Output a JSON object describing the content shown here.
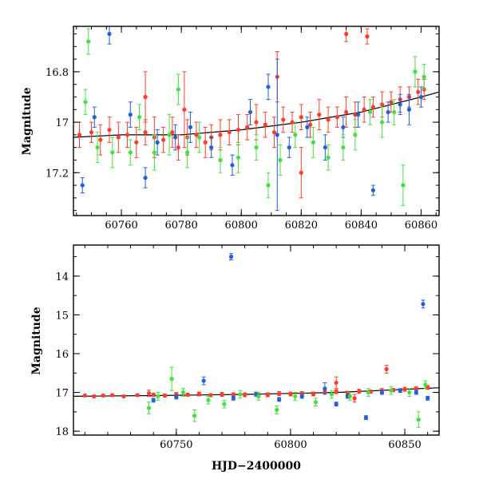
{
  "chart_data": [
    {
      "type": "scatter",
      "panel": "top",
      "title": "",
      "xlabel": "",
      "ylabel": "Magnitude",
      "xlim": [
        60744,
        60866
      ],
      "ylim": [
        17.37,
        16.62
      ],
      "y_inverted": true,
      "x_ticks": [
        60760,
        60780,
        60800,
        60820,
        60840,
        60860
      ],
      "y_ticks": [
        16.8,
        17,
        17.2
      ],
      "x_tick_labels": [
        "60760",
        "60780",
        "60800",
        "60820",
        "60840",
        "60860"
      ],
      "y_tick_labels": [
        "16.8",
        "17",
        "17.2"
      ],
      "series": [
        {
          "color": "#ff3b28",
          "points": [
            [
              60746,
              17.05,
              0.05
            ],
            [
              60750,
              17.04,
              0.04
            ],
            [
              60753,
              17.07,
              0.06
            ],
            [
              60756,
              17.03,
              0.05
            ],
            [
              60759,
              17.06,
              0.06
            ],
            [
              60762,
              17.05,
              0.05
            ],
            [
              60765,
              17.08,
              0.06
            ],
            [
              60768,
              17.04,
              0.05
            ],
            [
              60771,
              17.06,
              0.08
            ],
            [
              60774,
              17.07,
              0.05
            ],
            [
              60777,
              17.04,
              0.06
            ],
            [
              60779,
              17.1,
              0.05
            ],
            [
              60782,
              17.06,
              0.07
            ],
            [
              60785,
              17.05,
              0.05
            ],
            [
              60788,
              17.08,
              0.06
            ],
            [
              60790,
              17.06,
              0.05
            ],
            [
              60793,
              17.05,
              0.06
            ],
            [
              60796,
              17.04,
              0.05
            ],
            [
              60799,
              17.03,
              0.06
            ],
            [
              60802,
              17.02,
              0.05
            ],
            [
              60805,
              17.0,
              0.07
            ],
            [
              60808,
              17.01,
              0.05
            ],
            [
              60811,
              17.04,
              0.06
            ],
            [
              60814,
              16.99,
              0.05
            ],
            [
              60817,
              17.0,
              0.04
            ],
            [
              60820,
              16.98,
              0.05
            ],
            [
              60823,
              17.01,
              0.05
            ],
            [
              60826,
              16.97,
              0.06
            ],
            [
              60829,
              16.99,
              0.05
            ],
            [
              60832,
              16.98,
              0.04
            ],
            [
              60835,
              16.96,
              0.06
            ],
            [
              60838,
              16.97,
              0.05
            ],
            [
              60841,
              16.95,
              0.05
            ],
            [
              60844,
              16.94,
              0.04
            ],
            [
              60847,
              16.93,
              0.05
            ],
            [
              60850,
              16.92,
              0.04
            ],
            [
              60853,
              16.91,
              0.05
            ],
            [
              60856,
              16.9,
              0.04
            ],
            [
              60859,
              16.88,
              0.05
            ],
            [
              60861,
              16.87,
              0.04
            ],
            [
              60812,
              16.82,
              0.1
            ],
            [
              60835,
              16.65,
              0.03
            ],
            [
              60842,
              16.66,
              0.03
            ],
            [
              60820,
              17.2,
              0.1
            ],
            [
              60781,
              16.95,
              0.15
            ],
            [
              60768,
              16.9,
              0.1
            ]
          ]
        },
        {
          "color": "#1f5fe0",
          "points": [
            [
              60747,
              17.25,
              0.03
            ],
            [
              60751,
              16.98,
              0.04
            ],
            [
              60756,
              16.65,
              0.04
            ],
            [
              60763,
              16.97,
              0.05
            ],
            [
              60768,
              17.22,
              0.04
            ],
            [
              60772,
              17.08,
              0.05
            ],
            [
              60778,
              17.06,
              0.05
            ],
            [
              60783,
              17.02,
              0.06
            ],
            [
              60790,
              17.1,
              0.04
            ],
            [
              60797,
              17.17,
              0.04
            ],
            [
              60803,
              16.96,
              0.05
            ],
            [
              60809,
              16.86,
              0.05
            ],
            [
              60812,
              17.05,
              0.3
            ],
            [
              60816,
              17.1,
              0.04
            ],
            [
              60822,
              17.02,
              0.04
            ],
            [
              60828,
              17.1,
              0.05
            ],
            [
              60834,
              17.02,
              0.04
            ],
            [
              60839,
              16.97,
              0.05
            ],
            [
              60844,
              17.27,
              0.02
            ],
            [
              60849,
              16.96,
              0.04
            ],
            [
              60853,
              16.93,
              0.04
            ],
            [
              60856,
              16.95,
              0.06
            ],
            [
              60860,
              16.9,
              0.04
            ]
          ]
        },
        {
          "color": "#44e040",
          "points": [
            [
              60748,
              16.92,
              0.05
            ],
            [
              60749,
              16.68,
              0.05
            ],
            [
              60752,
              17.1,
              0.06
            ],
            [
              60757,
              17.12,
              0.06
            ],
            [
              60763,
              17.12,
              0.05
            ],
            [
              60766,
              16.98,
              0.05
            ],
            [
              60771,
              17.12,
              0.07
            ],
            [
              60776,
              17.05,
              0.08
            ],
            [
              60779,
              16.87,
              0.06
            ],
            [
              60782,
              17.12,
              0.06
            ],
            [
              60786,
              17.06,
              0.06
            ],
            [
              60793,
              17.15,
              0.05
            ],
            [
              60799,
              17.14,
              0.06
            ],
            [
              60805,
              17.1,
              0.05
            ],
            [
              60809,
              17.25,
              0.05
            ],
            [
              60813,
              17.15,
              0.06
            ],
            [
              60818,
              17.05,
              0.05
            ],
            [
              60824,
              17.08,
              0.06
            ],
            [
              60829,
              17.14,
              0.05
            ],
            [
              60834,
              17.1,
              0.05
            ],
            [
              60838,
              17.05,
              0.06
            ],
            [
              60843,
              16.96,
              0.05
            ],
            [
              60847,
              17.0,
              0.06
            ],
            [
              60851,
              16.96,
              0.05
            ],
            [
              60854,
              17.25,
              0.08
            ],
            [
              60858,
              16.8,
              0.06
            ],
            [
              60861,
              16.82,
              0.05
            ]
          ]
        }
      ],
      "model_curve": {
        "color": "#000000",
        "points": [
          [
            60744,
            17.06
          ],
          [
            60760,
            17.05
          ],
          [
            60780,
            17.05
          ],
          [
            60800,
            17.03
          ],
          [
            60820,
            17.0
          ],
          [
            60840,
            16.96
          ],
          [
            60860,
            16.9
          ],
          [
            60866,
            16.88
          ]
        ]
      }
    },
    {
      "type": "scatter",
      "panel": "bottom",
      "title": "",
      "xlabel": "HJD−2400000",
      "ylabel": "Magnitude",
      "xlim": [
        60705,
        60865
      ],
      "ylim": [
        18.1,
        13.2
      ],
      "y_inverted": true,
      "x_ticks": [
        60750,
        60800,
        60850
      ],
      "y_ticks": [
        14,
        15,
        16,
        17,
        18
      ],
      "x_tick_labels": [
        "60750",
        "60800",
        "60850"
      ],
      "y_tick_labels": [
        "14",
        "15",
        "16",
        "17",
        "18"
      ],
      "series": [
        {
          "color": "#ff3b28",
          "points": [
            [
              60710,
              17.08,
              0.03
            ],
            [
              60714,
              17.1,
              0.03
            ],
            [
              60718,
              17.08,
              0.03
            ],
            [
              60722,
              17.07,
              0.03
            ],
            [
              60727,
              17.1,
              0.03
            ],
            [
              60733,
              17.07,
              0.03
            ],
            [
              60740,
              17.06,
              0.04
            ],
            [
              60745,
              17.08,
              0.04
            ],
            [
              60750,
              17.05,
              0.05
            ],
            [
              60755,
              17.06,
              0.04
            ],
            [
              60760,
              17.04,
              0.05
            ],
            [
              60765,
              17.07,
              0.04
            ],
            [
              60770,
              17.05,
              0.05
            ],
            [
              60775,
              17.05,
              0.04
            ],
            [
              60780,
              17.06,
              0.05
            ],
            [
              60785,
              17.04,
              0.05
            ],
            [
              60790,
              17.06,
              0.05
            ],
            [
              60795,
              17.03,
              0.05
            ],
            [
              60800,
              17.04,
              0.05
            ],
            [
              60805,
              17.02,
              0.04
            ],
            [
              60810,
              17.04,
              0.05
            ],
            [
              60815,
              17.0,
              0.05
            ],
            [
              60820,
              16.98,
              0.05
            ],
            [
              60825,
              17.02,
              0.05
            ],
            [
              60830,
              16.97,
              0.05
            ],
            [
              60835,
              16.98,
              0.04
            ],
            [
              60840,
              16.95,
              0.05
            ],
            [
              60845,
              16.94,
              0.04
            ],
            [
              60850,
              16.92,
              0.05
            ],
            [
              60855,
              16.9,
              0.04
            ],
            [
              60860,
              16.87,
              0.05
            ],
            [
              60820,
              16.75,
              0.15
            ],
            [
              60842,
              16.4,
              0.1
            ],
            [
              60828,
              17.15,
              0.1
            ],
            [
              60738,
              17.02,
              0.08
            ]
          ]
        },
        {
          "color": "#1f5fe0",
          "points": [
            [
              60774,
              13.5,
              0.08
            ],
            [
              60858,
              14.72,
              0.1
            ],
            [
              60740,
              17.2,
              0.05
            ],
            [
              60750,
              17.12,
              0.05
            ],
            [
              60762,
              16.7,
              0.1
            ],
            [
              60775,
              17.15,
              0.05
            ],
            [
              60785,
              17.05,
              0.05
            ],
            [
              60795,
              17.18,
              0.05
            ],
            [
              60805,
              17.1,
              0.05
            ],
            [
              60815,
              16.9,
              0.15
            ],
            [
              60820,
              17.3,
              0.05
            ],
            [
              60825,
              17.1,
              0.05
            ],
            [
              60833,
              17.65,
              0.05
            ],
            [
              60840,
              17.0,
              0.05
            ],
            [
              60848,
              16.95,
              0.05
            ],
            [
              60855,
              17.0,
              0.05
            ],
            [
              60860,
              17.15,
              0.05
            ]
          ]
        },
        {
          "color": "#44e040",
          "points": [
            [
              60738,
              17.4,
              0.15
            ],
            [
              60742,
              17.1,
              0.1
            ],
            [
              60748,
              16.65,
              0.3
            ],
            [
              60753,
              17.0,
              0.1
            ],
            [
              60758,
              17.6,
              0.15
            ],
            [
              60764,
              17.2,
              0.1
            ],
            [
              60771,
              17.3,
              0.1
            ],
            [
              60778,
              17.05,
              0.1
            ],
            [
              60786,
              17.1,
              0.1
            ],
            [
              60794,
              17.45,
              0.1
            ],
            [
              60802,
              17.1,
              0.1
            ],
            [
              60811,
              17.25,
              0.1
            ],
            [
              60818,
              17.05,
              0.1
            ],
            [
              60826,
              17.1,
              0.1
            ],
            [
              60834,
              17.0,
              0.1
            ],
            [
              60844,
              16.95,
              0.1
            ],
            [
              60852,
              17.0,
              0.1
            ],
            [
              60856,
              17.7,
              0.2
            ],
            [
              60859,
              16.8,
              0.1
            ]
          ]
        }
      ],
      "model_curve": {
        "color": "#000000",
        "points": [
          [
            60705,
            17.1
          ],
          [
            60740,
            17.08
          ],
          [
            60780,
            17.05
          ],
          [
            60820,
            17.0
          ],
          [
            60865,
            16.88
          ]
        ]
      }
    }
  ]
}
